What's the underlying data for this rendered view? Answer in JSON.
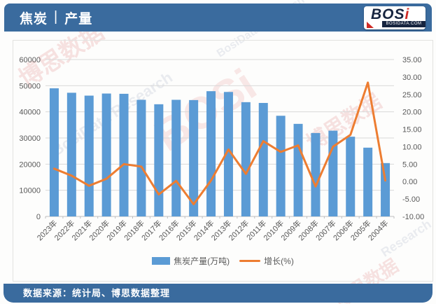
{
  "header": {
    "title_left": "焦炭",
    "separator": "|",
    "title_right": "产量",
    "logo": {
      "word": "BOS",
      "word_accent": "i",
      "subtext": "BOSIDATA.COM"
    }
  },
  "footer": {
    "source": "数据来源：统计局、博思数据整理"
  },
  "colors": {
    "banner_blue": "#3a6b9e",
    "bar_blue": "#5b9bd5",
    "line_orange": "#ed7d31",
    "gridline": "#d9d9d9",
    "axis_line": "#bfbfbf",
    "tick_text": "#595959"
  },
  "watermarks": [
    "博思数据",
    "BosiData Research",
    "BOSi",
    "博思数据",
    "BosiData Research",
    "博思数据",
    "Research"
  ],
  "chart_data": {
    "type": "bar+line-combo",
    "title": "焦炭 | 产量",
    "categories": [
      "2023年",
      "2022年",
      "2021年",
      "2020年",
      "2019年",
      "2018年",
      "2017年",
      "2016年",
      "2015年",
      "2014年",
      "2013年",
      "2012年",
      "2011年",
      "2010年",
      "2009年",
      "2008年",
      "2007年",
      "2006年",
      "2005年",
      "2004年"
    ],
    "series": [
      {
        "name": "焦炭产量(万吨)",
        "type": "bar",
        "axis": "left",
        "color": "#5b9bd5",
        "values": [
          49000,
          47300,
          46200,
          47000,
          46900,
          44600,
          42900,
          44600,
          44500,
          47900,
          47600,
          43700,
          43400,
          38500,
          35400,
          31900,
          32800,
          30500,
          26300,
          20400
        ]
      },
      {
        "name": "增长(%)",
        "type": "line",
        "axis": "right",
        "color": "#ed7d31",
        "values": [
          3.7,
          1.7,
          -1.2,
          0.8,
          5.0,
          4.3,
          -3.7,
          0.2,
          -6.5,
          0.3,
          9.2,
          2.2,
          11.6,
          8.5,
          10.4,
          -1.4,
          10.0,
          13.4,
          28.4,
          0.3
        ]
      }
    ],
    "left_axis": {
      "min": 0,
      "max": 60000,
      "step": 10000,
      "ticks": [
        "0",
        "10000",
        "20000",
        "30000",
        "40000",
        "50000",
        "60000"
      ]
    },
    "right_axis": {
      "min": -10,
      "max": 35,
      "step": 5,
      "ticks": [
        "-10.00",
        "-5.00",
        "0.00",
        "5.00",
        "10.00",
        "15.00",
        "20.00",
        "25.00",
        "30.00",
        "35.00"
      ]
    },
    "grid": "horizontal-on",
    "legend_position": "bottom"
  }
}
